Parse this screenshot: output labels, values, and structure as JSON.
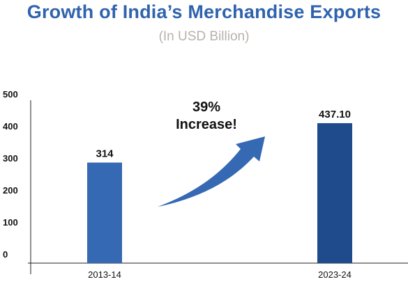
{
  "chart_data": {
    "type": "bar",
    "title": "Growth of India’s Merchandise Exports",
    "subtitle": "(In USD Billion)",
    "categories": [
      "2013-14",
      "2023-24"
    ],
    "values": [
      314,
      437.1
    ],
    "data_labels": [
      "314",
      "437.10"
    ],
    "yticks": [
      0,
      100,
      200,
      300,
      400,
      500
    ],
    "ylim": [
      0,
      500
    ],
    "grid": false,
    "bar_colors": [
      "#3569b3",
      "#1f4b8c"
    ],
    "annotation": {
      "line1": "39%",
      "line2": "Increase!",
      "arrow_color": "#3569b3"
    }
  }
}
